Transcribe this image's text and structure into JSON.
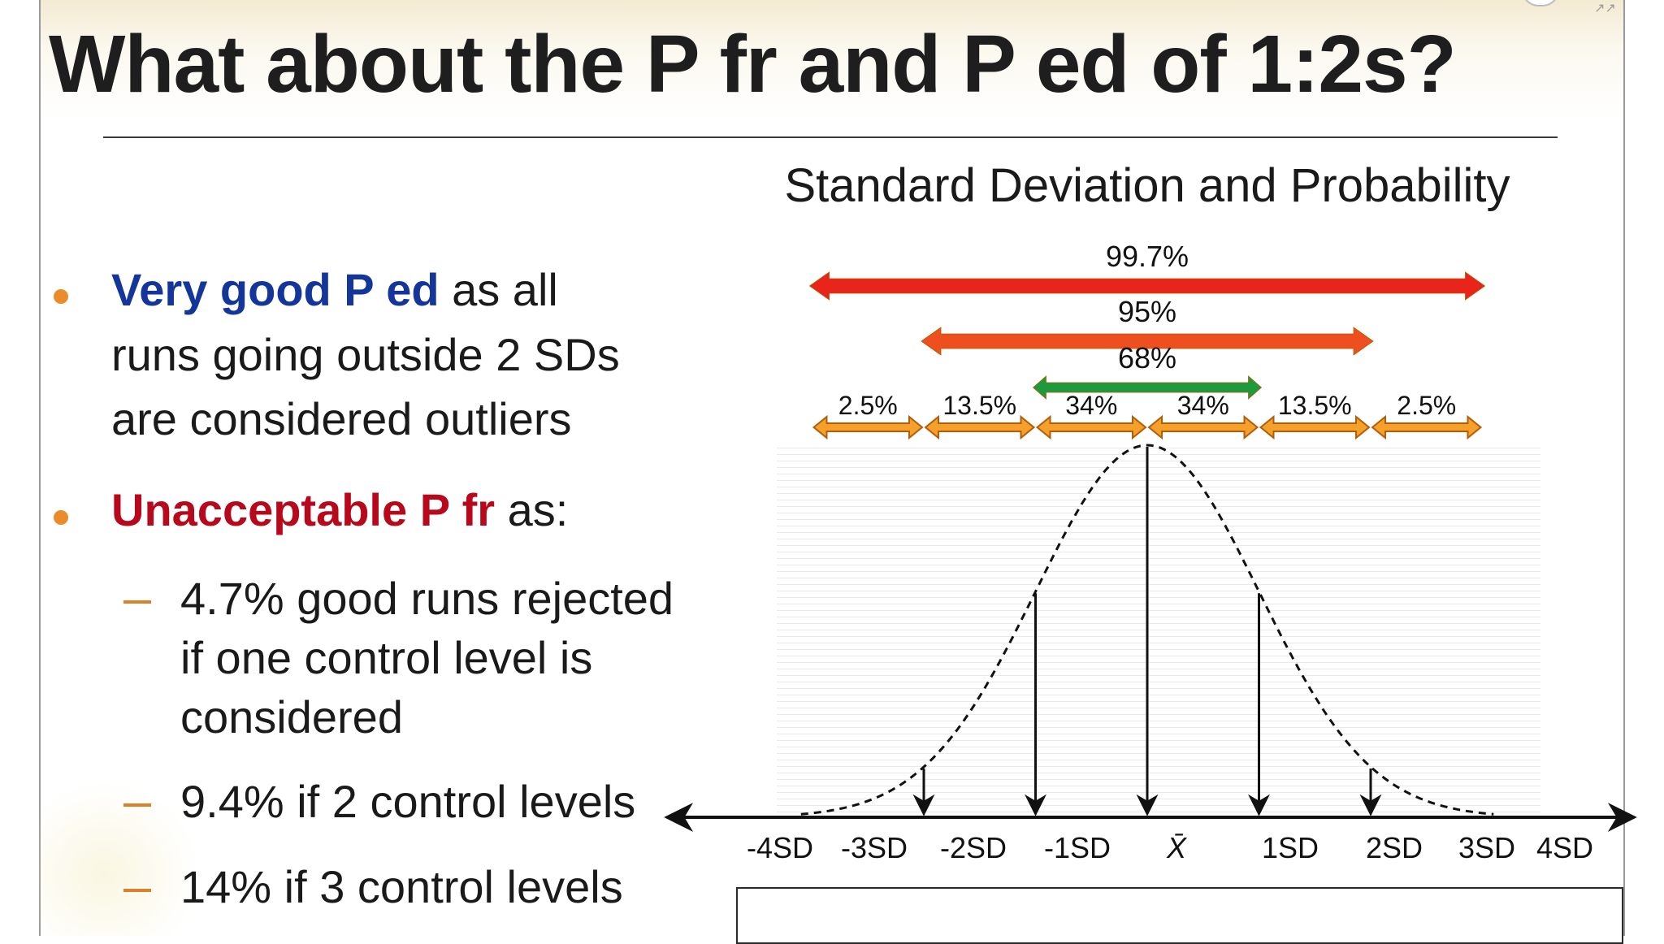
{
  "slide": {
    "title": "What about the P fr and P ed of 1:2s?",
    "bullets": [
      {
        "lines": [
          {
            "highlight": "Very good P ed",
            "rest": " as all"
          },
          {
            "highlight": "",
            "rest": "runs going outside 2 SDs"
          },
          {
            "highlight": "",
            "rest": "are considered outliers"
          }
        ],
        "highlight_color": "#14369a"
      },
      {
        "lines": [
          {
            "highlight": "Unacceptable P fr",
            "rest": " as:"
          }
        ],
        "highlight_color": "#b8081c"
      }
    ],
    "sub_bullets": [
      {
        "lines": [
          "4.7% good runs rejected",
          "if one control level is",
          "considered"
        ]
      },
      {
        "lines": [
          "9.4% if 2 control levels"
        ]
      },
      {
        "lines": [
          "14% if 3 control levels"
        ]
      }
    ],
    "bullet_color": "#ea8c2b"
  },
  "chart_data": {
    "type": "line",
    "title": "Standard Deviation and Probability",
    "x_tick_labels": [
      "-4SD",
      "-3SD",
      "-2SD",
      "-1SD",
      "X̄",
      "1SD",
      "2SD",
      "3SD",
      "4SD"
    ],
    "x_ticks": [
      -4,
      -3,
      -2,
      -1,
      0,
      1,
      2,
      3,
      4
    ],
    "xlim": [
      -4.3,
      4.3
    ],
    "curve": "normal distribution, dashed",
    "vertical_arrows_at": [
      -2,
      -1,
      0,
      1,
      2
    ],
    "ranges": [
      {
        "label": "99.7%",
        "from": -3,
        "to": 3,
        "color": "#e8241b"
      },
      {
        "label": "95%",
        "from": -2,
        "to": 2,
        "color": "#ee4f1e"
      },
      {
        "label": "68%",
        "from": -1,
        "to": 1,
        "color": "#1e9a3c"
      }
    ],
    "segments": [
      {
        "label": "2.5%",
        "from": -3,
        "to": -2
      },
      {
        "label": "13.5%",
        "from": -2,
        "to": -1
      },
      {
        "label": "34%",
        "from": -1,
        "to": 0
      },
      {
        "label": "34%",
        "from": 0,
        "to": 1
      },
      {
        "label": "13.5%",
        "from": 1,
        "to": 2
      },
      {
        "label": "2.5%",
        "from": 2,
        "to": 3
      }
    ],
    "segment_color": "#f5a02a",
    "grid": true
  }
}
